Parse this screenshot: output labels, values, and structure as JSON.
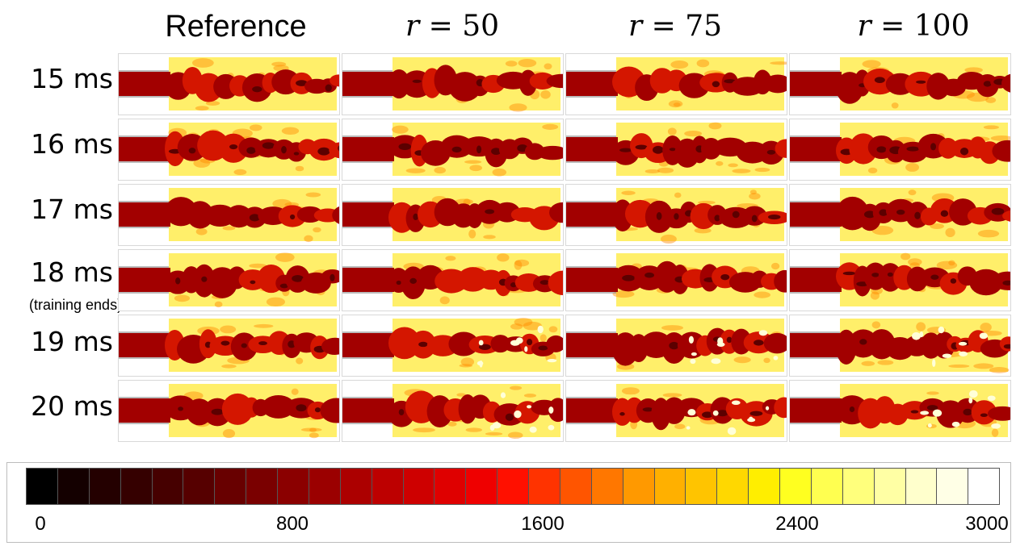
{
  "column_headers": [
    {
      "text": "Reference",
      "style": "sans"
    },
    {
      "var": "r",
      "rest": " = 50",
      "style": "math"
    },
    {
      "var": "r",
      "rest": " = 75",
      "style": "math"
    },
    {
      "var": "r",
      "rest": " = 100",
      "style": "math"
    }
  ],
  "row_labels": [
    "15 ms",
    "16 ms",
    "17 ms",
    "18 ms",
    "19 ms",
    "20 ms"
  ],
  "row_note": "(training ends)",
  "colorbar": {
    "colors": [
      "#000000",
      "#140000",
      "#240000",
      "#350000",
      "#460000",
      "#560000",
      "#680000",
      "#7a0000",
      "#8b0000",
      "#9b0000",
      "#ac0000",
      "#bd0000",
      "#ce0000",
      "#df0000",
      "#ef0000",
      "#ff1000",
      "#ff3300",
      "#ff5500",
      "#ff7700",
      "#ff9900",
      "#ffb000",
      "#ffc400",
      "#ffd800",
      "#ffee00",
      "#ffff20",
      "#ffff50",
      "#ffff7c",
      "#ffffa4",
      "#ffffcc",
      "#ffffe6",
      "#ffffff"
    ],
    "ticks": [
      "0",
      "800",
      "1600",
      "2400",
      "3000"
    ]
  },
  "panel_colors": {
    "background": "#ffef6a",
    "jet_core": "#a20000",
    "jet_mid": "#d41600",
    "jet_dark": "#5c0000",
    "edge": "#ff8a00",
    "hot": "#ffffd8"
  }
}
